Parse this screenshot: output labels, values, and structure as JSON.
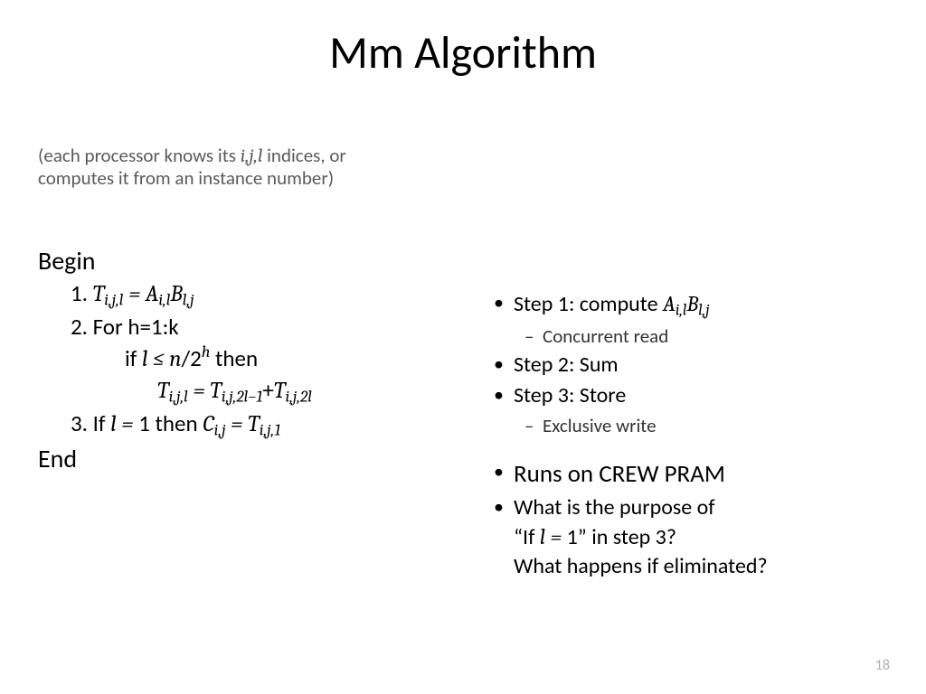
{
  "title": "Mm Algorithm",
  "intro_line1": "(each processor knows its ",
  "intro_idx": "i,j,l",
  "intro_line1b": " indices, or",
  "intro_line2": "computes it from an instance number)",
  "algo": {
    "begin": "Begin",
    "end": "End",
    "step1_num": "1. ",
    "step2_num": "2. For h=1:k",
    "ifword": "if ",
    "thenword": "   then",
    "step3_num": "3. If ",
    "step3_then": " then "
  },
  "notes": {
    "s1_pre": "Step 1: compute ",
    "s1a": "Concurrent read",
    "s2": "Step 2: Sum",
    "s3": "Step 3: Store",
    "s3a": "Exclusive write",
    "crew": "Runs on CREW PRAM",
    "q_line1_pre": "What is the purpose of",
    "q_line2_pre": "“If ",
    "q_line2_post": "” in step 3?",
    "q_line3": "What happens if eliminated?"
  },
  "page": "18",
  "style": {
    "type": "slide",
    "background": "#ffffff",
    "title_fontsize": 50,
    "body_fontsize": 25,
    "notes_fontsize": 24,
    "pagenum_color": "#b0b0b0",
    "intro_color": "#5a5a5a",
    "text_color": "#000000",
    "font_family": "Calibri/Segoe UI",
    "math_font": "Cambria Math"
  }
}
